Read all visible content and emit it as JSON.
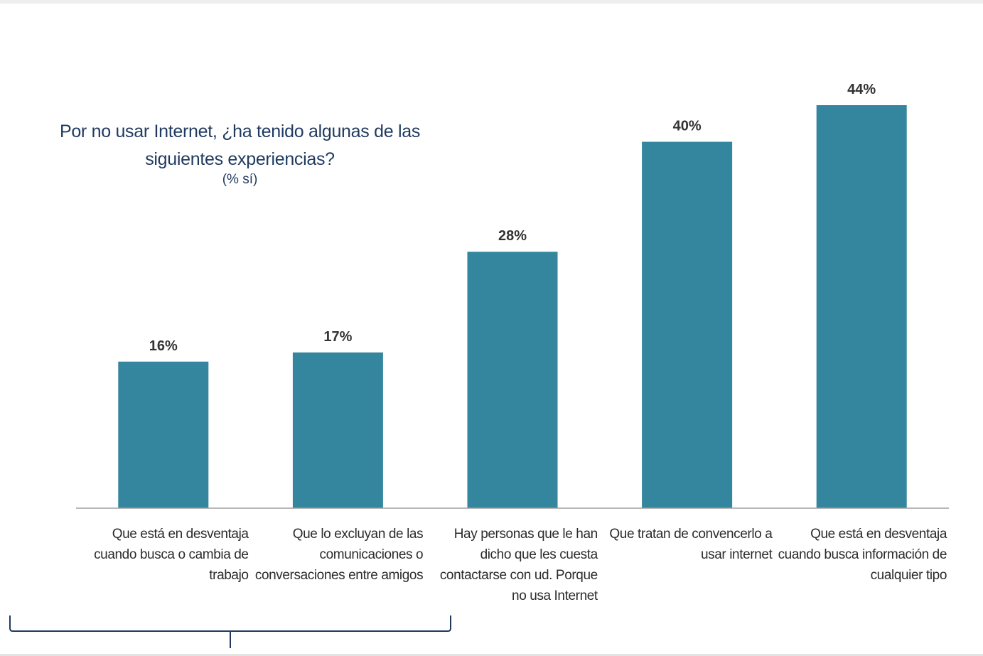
{
  "chart_data": {
    "type": "bar",
    "title": "Por no usar Internet, ¿ha tenido algunas de las siguientes experiencias?",
    "subtitle": "(% sí)",
    "categories": [
      "Que está en desventaja cuando busca o cambia de trabajo",
      "Que lo excluyan de las comunicaciones o conversaciones entre amigos",
      "Hay personas que le han dicho que les cuesta contactarse con ud. Porque no usa Internet",
      "Que tratan de convencerlo a usar internet",
      "Que está en desventaja cuando busca información de cualquier tipo"
    ],
    "category_lines": [
      [
        "Que está en desventaja",
        "cuando busca o cambia de",
        "trabajo"
      ],
      [
        "Que lo excluyan de las",
        "comunicaciones o",
        "conversaciones entre amigos"
      ],
      [
        "Hay personas que le han",
        "dicho que les cuesta",
        "contactarse con ud. Porque",
        "no usa Internet"
      ],
      [
        "Que tratan de convencerlo a",
        "usar internet"
      ],
      [
        "Que está en desventaja",
        "cuando busca información de",
        "cualquier tipo"
      ]
    ],
    "values": [
      16,
      17,
      28,
      40,
      44
    ],
    "value_labels": [
      "16%",
      "17%",
      "28%",
      "40%",
      "44%"
    ],
    "ylim": [
      0,
      44
    ],
    "xlabel": "",
    "ylabel": "",
    "grid": false,
    "legend": "none",
    "colors": {
      "bar": "#33869e",
      "title": "#1f3a5f",
      "bracket": "#1f3a5f",
      "axis": "#a0a0a0"
    },
    "bracket_covers": [
      0,
      1
    ]
  }
}
